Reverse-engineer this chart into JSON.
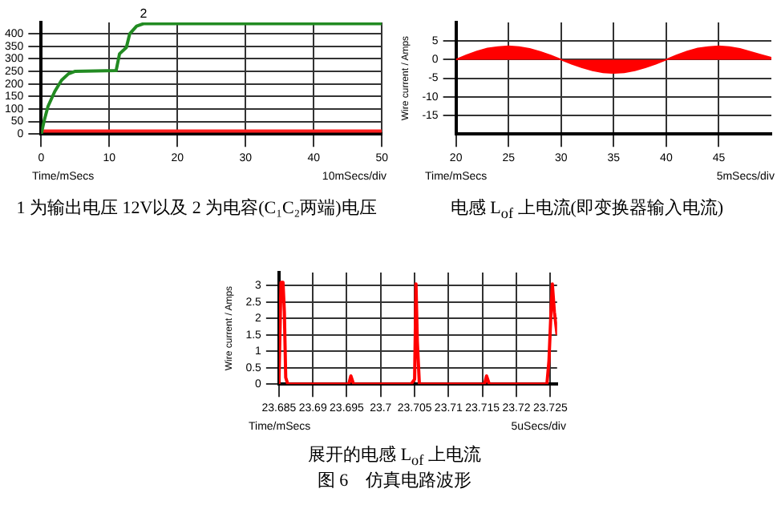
{
  "chart_data": [
    {
      "type": "line",
      "title": "1 为输出电压 12V以及 2 为电容(C₁C₂两端)电压",
      "xlabel": "Time/mSecs",
      "annotations": [
        "10mSecs/div"
      ],
      "xlim": [
        0,
        50
      ],
      "xticks": [
        0,
        10,
        20,
        30,
        40,
        50
      ],
      "ylim": [
        0,
        445
      ],
      "yticks": [
        0,
        50,
        100,
        150,
        200,
        250,
        300,
        350,
        400
      ],
      "grid": true,
      "legend": false,
      "marker": "none",
      "line_style": "solid",
      "series": [
        {
          "name": "2",
          "color": "#228b22",
          "x": [
            0,
            0.5,
            1,
            2,
            3,
            4,
            5,
            11,
            11.5,
            12.5,
            13,
            14,
            15,
            50
          ],
          "values": [
            0,
            60,
            110,
            170,
            215,
            240,
            250,
            253,
            320,
            345,
            400,
            430,
            440,
            440
          ]
        },
        {
          "color": "#ff2020",
          "x": [
            0,
            50
          ],
          "values": [
            12,
            12
          ]
        }
      ]
    },
    {
      "type": "area",
      "title": "电感 L$_{of}$ 上电流(即变换器输入电流)",
      "xlabel": "Time/mSecs",
      "ylabel": "Wire current / Amps",
      "annotations": [
        "5mSecs/div"
      ],
      "xlim": [
        20,
        50
      ],
      "xticks": [
        20,
        25,
        30,
        35,
        40,
        45
      ],
      "ylim": [
        -20,
        10
      ],
      "yticks": [
        -15,
        -10,
        -5,
        0,
        5
      ],
      "grid": true,
      "legend": false,
      "marker": "none",
      "line_style": "solid",
      "series": [
        {
          "color": "#ff0000",
          "x": [
            20,
            21,
            22,
            23,
            24,
            25,
            26,
            27,
            28,
            29,
            30,
            31,
            32,
            33,
            34,
            35,
            36,
            37,
            38,
            39,
            40,
            41,
            42,
            43,
            44,
            45,
            46,
            47,
            48,
            49,
            50
          ],
          "values": [
            0,
            1.2,
            2.2,
            3,
            3.4,
            3.6,
            3.4,
            2.9,
            2.1,
            1.1,
            0,
            -1.1,
            -2.1,
            -2.9,
            -3.4,
            -3.6,
            -3.4,
            -2.9,
            -2.1,
            -1.1,
            0,
            1.2,
            2.2,
            3,
            3.4,
            3.6,
            3.4,
            2.9,
            2.1,
            1.3,
            0.5
          ]
        }
      ]
    },
    {
      "type": "line",
      "title": "展开的电感 L$_{of}$ 上电流",
      "xlabel": "Time/mSecs",
      "ylabel": "Wire current / Amps",
      "annotations": [
        "5uSecs/div",
        "图 6　仿真电路波形"
      ],
      "xlim": [
        23.685,
        23.726
      ],
      "xticks": [
        23.685,
        23.69,
        23.695,
        23.7,
        23.705,
        23.71,
        23.715,
        23.72,
        23.725
      ],
      "ylim": [
        0,
        3.4
      ],
      "yticks": [
        0,
        0.5,
        1,
        1.5,
        2,
        2.5,
        3
      ],
      "grid": true,
      "legend": false,
      "marker": "none",
      "line_style": "solid",
      "series": [
        {
          "color": "#ff0000",
          "x": [
            23.685,
            23.6853,
            23.6856,
            23.6858,
            23.686,
            23.6863,
            23.6953,
            23.6956,
            23.696,
            23.7045,
            23.705,
            23.7052,
            23.7054,
            23.7057,
            23.7153,
            23.7156,
            23.716,
            23.7245,
            23.7248,
            23.7251,
            23.7253,
            23.7256,
            23.726
          ],
          "values": [
            0,
            3.1,
            3.1,
            2.2,
            0.2,
            0,
            0,
            0.25,
            0,
            0,
            0.15,
            3.05,
            1.3,
            0,
            0,
            0.25,
            0,
            0,
            0.7,
            2.2,
            3.05,
            2.2,
            1.5
          ]
        }
      ]
    }
  ]
}
